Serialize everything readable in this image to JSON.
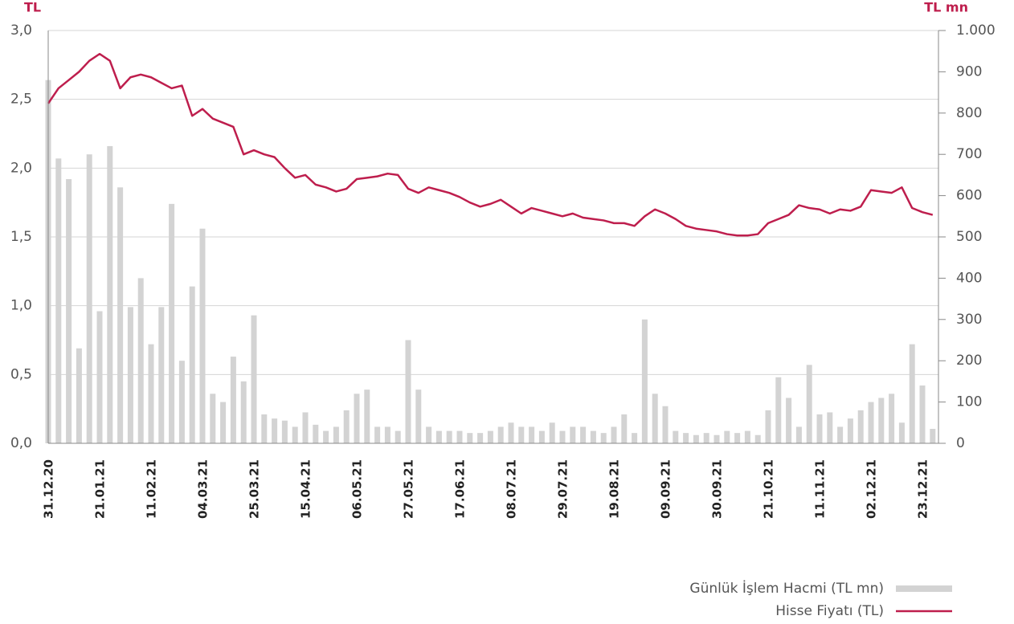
{
  "chart_data": {
    "type": "bar",
    "y_label": "TL",
    "y2_label": "TL mn",
    "categories": [
      "31.12.20",
      null,
      null,
      null,
      null,
      "21.01.21",
      null,
      null,
      null,
      null,
      "11.02.21",
      null,
      null,
      null,
      null,
      "04.03.21",
      null,
      null,
      null,
      null,
      "25.03.21",
      null,
      null,
      null,
      null,
      "15.04.21",
      null,
      null,
      null,
      null,
      "06.05.21",
      null,
      null,
      null,
      null,
      "27.05.21",
      null,
      null,
      null,
      null,
      "17.06.21",
      null,
      null,
      null,
      null,
      "08.07.21",
      null,
      null,
      null,
      null,
      "29.07.21",
      null,
      null,
      null,
      null,
      "19.08.21",
      null,
      null,
      null,
      null,
      "09.09.21",
      null,
      null,
      null,
      null,
      "30.09.21",
      null,
      null,
      null,
      null,
      "21.10.21",
      null,
      null,
      null,
      null,
      "11.11.21",
      null,
      null,
      null,
      null,
      "02.12.21",
      null,
      null,
      null,
      null,
      "23.12.21",
      null
    ],
    "series": [
      {
        "name": "Günlük İşlem Hacmi (TL mn)",
        "type": "bar",
        "axis": "y2",
        "color": "#d3d3d3",
        "values": [
          880,
          690,
          640,
          230,
          700,
          320,
          720,
          620,
          330,
          400,
          240,
          330,
          580,
          200,
          380,
          520,
          120,
          100,
          210,
          150,
          310,
          70,
          60,
          55,
          40,
          75,
          45,
          30,
          40,
          80,
          120,
          130,
          40,
          40,
          30,
          250,
          130,
          40,
          30,
          30,
          30,
          25,
          25,
          30,
          40,
          50,
          40,
          40,
          30,
          50,
          30,
          40,
          40,
          30,
          25,
          40,
          70,
          25,
          300,
          120,
          90,
          30,
          25,
          20,
          25,
          20,
          30,
          25,
          30,
          20,
          80,
          160,
          110,
          40,
          190,
          70,
          75,
          40,
          60,
          80,
          100,
          110,
          120,
          50,
          240,
          140,
          35
        ]
      },
      {
        "name": "Hisse Fiyatı (TL)",
        "type": "line",
        "axis": "y",
        "color": "#be1e4d",
        "values": [
          2.47,
          2.58,
          2.64,
          2.7,
          2.78,
          2.83,
          2.78,
          2.58,
          2.66,
          2.68,
          2.66,
          2.62,
          2.58,
          2.6,
          2.38,
          2.43,
          2.36,
          2.33,
          2.3,
          2.1,
          2.13,
          2.1,
          2.08,
          2.0,
          1.93,
          1.95,
          1.88,
          1.86,
          1.83,
          1.85,
          1.92,
          1.93,
          1.94,
          1.96,
          1.95,
          1.85,
          1.82,
          1.86,
          1.84,
          1.82,
          1.79,
          1.75,
          1.72,
          1.74,
          1.77,
          1.72,
          1.67,
          1.71,
          1.69,
          1.67,
          1.65,
          1.67,
          1.64,
          1.63,
          1.62,
          1.6,
          1.6,
          1.58,
          1.65,
          1.7,
          1.67,
          1.63,
          1.58,
          1.56,
          1.55,
          1.54,
          1.52,
          1.51,
          1.51,
          1.52,
          1.6,
          1.63,
          1.66,
          1.73,
          1.71,
          1.7,
          1.67,
          1.7,
          1.69,
          1.72,
          1.84,
          1.83,
          1.82,
          1.86,
          1.71,
          1.68,
          1.66
        ]
      }
    ],
    "ylim": [
      0,
      3
    ],
    "yticks": [
      {
        "value": 0,
        "label": "0,0"
      },
      {
        "value": 0.5,
        "label": "0,5"
      },
      {
        "value": 1,
        "label": "1,0"
      },
      {
        "value": 1.5,
        "label": "1,5"
      },
      {
        "value": 2,
        "label": "2,0"
      },
      {
        "value": 2.5,
        "label": "2,5"
      },
      {
        "value": 3,
        "label": "3,0"
      }
    ],
    "y2lim": [
      0,
      1000
    ],
    "y2ticks": [
      0,
      100,
      200,
      300,
      400,
      500,
      600,
      700,
      800,
      900,
      {
        "value": 1000,
        "label": "1.000"
      }
    ],
    "grid": true
  }
}
